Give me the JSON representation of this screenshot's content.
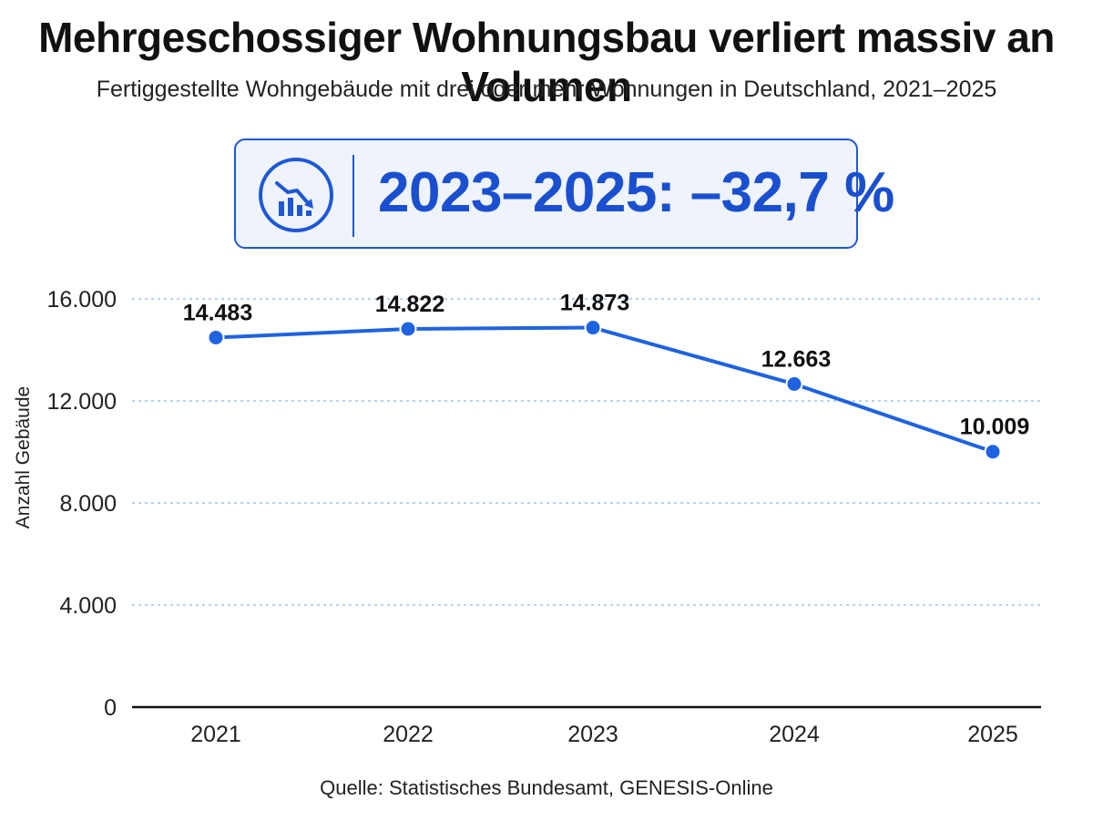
{
  "header": {
    "title": "Mehrgeschossiger Wohnungsbau verliert massiv an Volumen",
    "subtitle": "Fertiggestellte Wohngebäude mit drei oder mehr Wohnungen in Deutschland, 2021–2025"
  },
  "kpi": {
    "icon": "chart-down-icon",
    "value": "2023–2025: –32,7 %"
  },
  "chart_data": {
    "type": "line",
    "categories": [
      "2021",
      "2022",
      "2023",
      "2024",
      "2025"
    ],
    "series": [
      {
        "values": [
          14483,
          14822,
          14873,
          12663,
          10009
        ]
      }
    ],
    "data_labels": [
      "14.483",
      "14.822",
      "14.873",
      "12.663",
      "10.009"
    ],
    "ylabel": "Anzahl Gebäude",
    "ylim": [
      0,
      16000
    ],
    "yticks": [
      0,
      4000,
      8000,
      12000,
      16000
    ],
    "ytick_labels": [
      "0",
      "4.000",
      "8.000",
      "12.000",
      "16.000"
    ],
    "grid": true,
    "colors": {
      "line": "#1e63e0",
      "grid": "#9fc3ea",
      "axis": "#111111"
    }
  },
  "footer": {
    "source": "Quelle: Statistisches Bundesamt, GENESIS-Online"
  }
}
